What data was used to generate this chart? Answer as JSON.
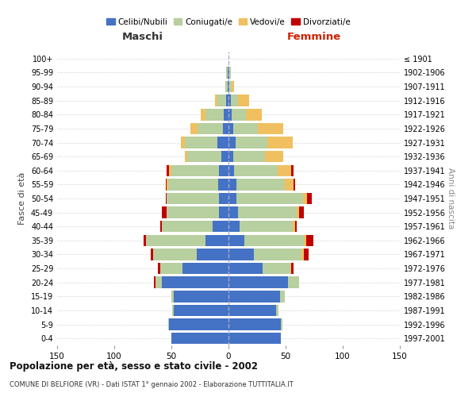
{
  "age_groups": [
    "0-4",
    "5-9",
    "10-14",
    "15-19",
    "20-24",
    "25-29",
    "30-34",
    "35-39",
    "40-44",
    "45-49",
    "50-54",
    "55-59",
    "60-64",
    "65-69",
    "70-74",
    "75-79",
    "80-84",
    "85-89",
    "90-94",
    "95-99",
    "100+"
  ],
  "birth_years": [
    "1997-2001",
    "1992-1996",
    "1987-1991",
    "1982-1986",
    "1977-1981",
    "1972-1976",
    "1967-1971",
    "1962-1966",
    "1957-1961",
    "1952-1956",
    "1947-1951",
    "1942-1946",
    "1937-1941",
    "1932-1936",
    "1927-1931",
    "1922-1926",
    "1917-1921",
    "1912-1916",
    "1907-1911",
    "1902-1906",
    "≤ 1901"
  ],
  "maschi": {
    "celibi": [
      50,
      52,
      48,
      48,
      58,
      40,
      28,
      20,
      14,
      8,
      8,
      9,
      8,
      6,
      10,
      5,
      4,
      2,
      1,
      1,
      0
    ],
    "coniugati": [
      0,
      1,
      1,
      2,
      6,
      20,
      38,
      52,
      44,
      46,
      46,
      44,
      42,
      30,
      28,
      22,
      16,
      8,
      2,
      1,
      0
    ],
    "vedovi": [
      0,
      0,
      0,
      0,
      0,
      0,
      0,
      0,
      0,
      0,
      0,
      1,
      2,
      2,
      4,
      6,
      4,
      2,
      0,
      0,
      0
    ],
    "divorziati": [
      0,
      0,
      0,
      0,
      1,
      2,
      2,
      2,
      2,
      4,
      1,
      1,
      2,
      0,
      0,
      0,
      0,
      0,
      0,
      0,
      0
    ]
  },
  "femmine": {
    "nubili": [
      46,
      46,
      42,
      45,
      52,
      30,
      22,
      14,
      10,
      8,
      7,
      7,
      5,
      4,
      6,
      4,
      3,
      2,
      1,
      1,
      0
    ],
    "coniugate": [
      0,
      1,
      2,
      4,
      10,
      24,
      42,
      52,
      46,
      52,
      58,
      42,
      38,
      28,
      28,
      22,
      12,
      6,
      2,
      1,
      0
    ],
    "vedove": [
      0,
      0,
      0,
      0,
      0,
      1,
      2,
      2,
      2,
      2,
      4,
      8,
      12,
      16,
      22,
      22,
      14,
      10,
      2,
      0,
      0
    ],
    "divorziate": [
      0,
      0,
      0,
      0,
      0,
      2,
      4,
      6,
      2,
      4,
      4,
      1,
      2,
      0,
      0,
      0,
      0,
      0,
      0,
      0,
      0
    ]
  },
  "colors": {
    "celibi": "#4472c4",
    "coniugati": "#b8cfa0",
    "vedovi": "#f0c060",
    "divorziati": "#c00000"
  },
  "legend_labels": [
    "Celibi/Nubili",
    "Coniugati/e",
    "Vedovi/e",
    "Divorziati/e"
  ],
  "xlim": 150,
  "title": "Popolazione per età, sesso e stato civile - 2002",
  "subtitle": "COMUNE DI BELFIORE (VR) - Dati ISTAT 1° gennaio 2002 - Elaborazione TUTTITALIA.IT",
  "ylabel_left": "Fasce di età",
  "ylabel_right": "Anni di nascita",
  "xlabel_left": "Maschi",
  "xlabel_right": "Femmine",
  "bg_color": "#ffffff",
  "grid_color": "#cccccc"
}
